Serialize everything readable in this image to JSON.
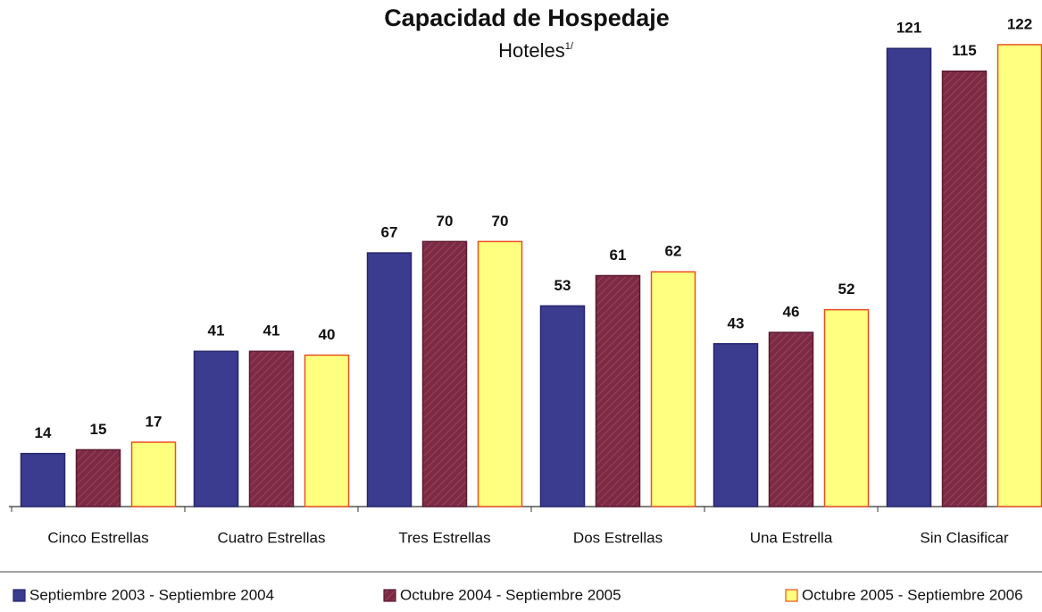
{
  "chart_data": {
    "type": "bar",
    "title": "Capacidad de Hospedaje",
    "subtitle": "Hoteles",
    "subtitle_note": "1/",
    "categories": [
      "Cinco Estrellas",
      "Cuatro Estrellas",
      "Tres Estrellas",
      "Dos Estrellas",
      "Una Estrella",
      "Sin Clasificar"
    ],
    "series": [
      {
        "name": "Septiembre 2003 - Septiembre 2004",
        "color": "#3b3b8f",
        "values": [
          14,
          41,
          67,
          53,
          43,
          121
        ]
      },
      {
        "name": "Octubre 2004 - Septiembre 2005",
        "color": "#7d2b45",
        "values": [
          15,
          41,
          70,
          61,
          46,
          115
        ]
      },
      {
        "name": "Octubre 2005 - Septiembre 2006",
        "color": "#ffff80",
        "values": [
          17,
          40,
          70,
          62,
          52,
          122
        ]
      }
    ],
    "ylim": [
      0,
      122
    ]
  }
}
